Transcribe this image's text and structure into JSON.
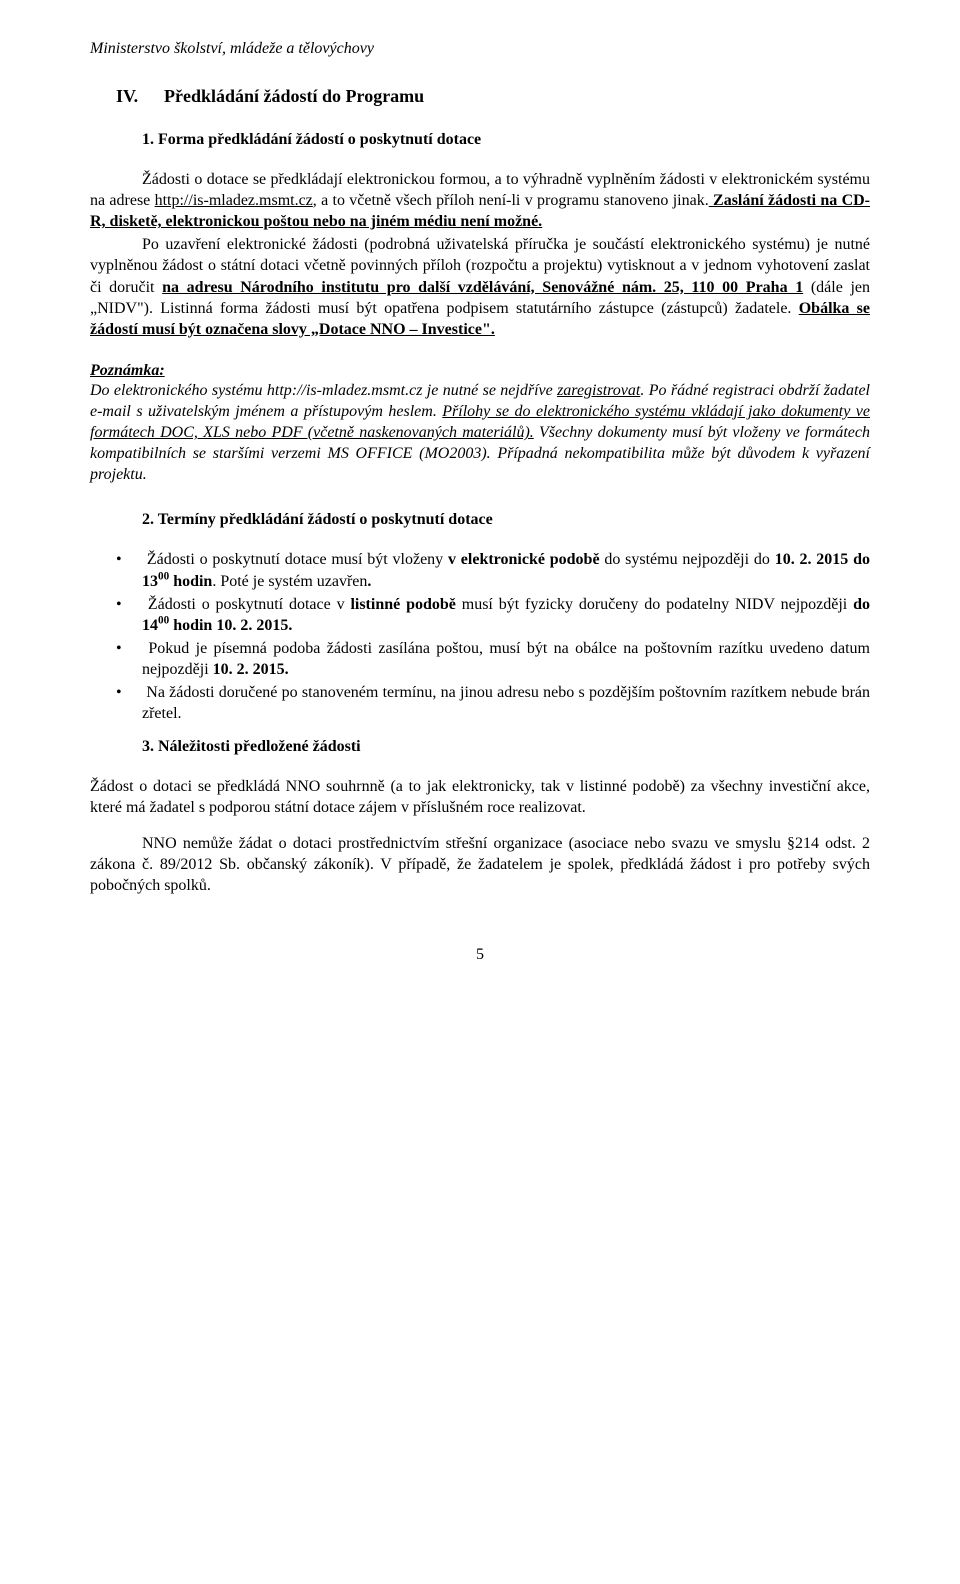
{
  "header": {
    "org": "Ministerstvo školství, mládeže a tělovýchovy"
  },
  "section_iv": {
    "num": "IV.",
    "title": "Předkládání žádostí do Programu"
  },
  "sub1": {
    "num": "1.",
    "title": "Forma předkládání žádostí o poskytnutí dotace"
  },
  "p1": {
    "run1": "Žádosti o dotace se předkládají elektronickou formou, a to výhradně vyplněním žádosti v elektronickém systému na adrese ",
    "url": "http://is-mladez.msmt.cz",
    "run2": ",  a to včetně všech příloh není-li  v programu  stanoveno  jinak.",
    "run3": "  Zaslání  žádosti  na  CD-R,  disketě,  elektronickou poštou nebo na jiném médiu není možné."
  },
  "p2": {
    "run1": "Po  uzavření  elektronické  žádosti  (podrobná  uživatelská  příručka  je  součástí elektronického systému) je nutné vyplněnou žádost o státní dotaci včetně povinných příloh (rozpočtu  a  projektu)  vytisknout  a  v jednom  vyhotovení  zaslat  či  doručit  ",
    "addr": "na  adresu Národního institutu pro další vzdělávání, Senovážné nám. 25, 110 00 Praha 1",
    "run2": " (dále jen „NIDV\").  Listinná  forma  žádosti  musí  být  opatřena  podpisem  statutárního  zástupce (zástupců)  žadatele.  ",
    "run3": "Obálka  se  žádostí  musí  být  označena  slovy  „Dotace  NNO  – Investice\"."
  },
  "note": {
    "label": "Poznámka:",
    "run1": "Do elektronického systému http://is-mladez.msmt.cz je nutné se nejdříve ",
    "reg": "zaregistrovat",
    "run2": ". Po řádné registraci obdrží žadatel e-mail s uživatelským jménem a přístupovým heslem. ",
    "run3": "Přílohy se do elektronického systému vkládají jako dokumenty ve formátech DOC, XLS nebo PDF (včetně  naskenovaných  materiálů).",
    "run4": "  Všechny  dokumenty  musí  být  vloženy  ve  formátech kompatibilních se staršími verzemi MS OFFICE (MO2003). Případná nekompatibilita může být důvodem k vyřazení projektu."
  },
  "sub2": {
    "num": "2.",
    "title": "Termíny předkládání žádostí o poskytnutí dotace"
  },
  "bullets2": {
    "b1_a": "Žádosti  o  poskytnutí  dotace  musí  být  vloženy  ",
    "b1_b": "v elektronické  podobě",
    "b1_c": "  do  systému nejpozději do ",
    "b1_d": "10. 2. 2015 do 13",
    "b1_sup": "00",
    "b1_e": " hodin",
    "b1_f": ". Poté je systém uzavřen",
    "b1_g": ".",
    "b2_a": "Žádosti o poskytnutí dotace v ",
    "b2_b": "listinné podobě",
    "b2_c": " musí být fyzicky doručeny do podatelny NIDV nejpozději ",
    "b2_d": "do 14",
    "b2_sup": "00",
    "b2_e": " hodin 10. 2. 2015.",
    "b3_a": "Pokud je písemná podoba žádosti zasílána poštou, musí být na obálce na poštovním razítku uvedeno datum nejpozději ",
    "b3_b": "10. 2. 2015.",
    "b4": "Na žádosti doručené po stanoveném termínu, na jinou adresu nebo s pozdějším poštovním razítkem nebude brán zřetel."
  },
  "sub3": {
    "num": "3.",
    "title": "Náležitosti předložené žádosti"
  },
  "p3": "Žádost o dotaci se předkládá NNO souhrnně (a to jak elektronicky, tak v listinné podobě) za všechny investiční akce, které má žadatel s podporou státní dotace zájem v příslušném roce realizovat.",
  "p4": "NNO nemůže žádat o dotaci prostřednictvím střešní organizace (asociace nebo svazu ve smyslu §214 odst. 2 zákona č. 89/2012 Sb. občanský zákoník). V případě, že žadatelem je spolek, předkládá žádost i pro potřeby svých pobočných spolků.",
  "page": "5"
}
